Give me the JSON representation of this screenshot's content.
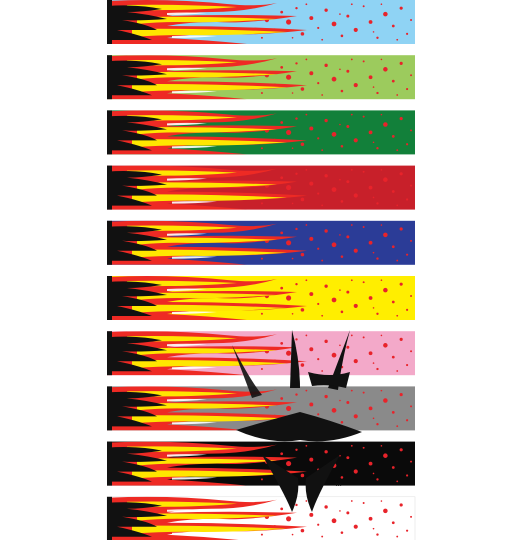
{
  "colors": {
    "flame_red": "#ee2a24",
    "flame_yellow": "#ffe600",
    "flame_black": "#111111",
    "splatter": "#e8232a",
    "logo": "#111111"
  },
  "wraps": [
    {
      "name": "sky-blue",
      "color": "#8fd3f4"
    },
    {
      "name": "lime-green",
      "color": "#9ccb5d"
    },
    {
      "name": "green",
      "color": "#12803a"
    },
    {
      "name": "red",
      "color": "#c8202a"
    },
    {
      "name": "blue",
      "color": "#2b3c97"
    },
    {
      "name": "yellow",
      "color": "#ffee00"
    },
    {
      "name": "pink",
      "color": "#f3a9c9"
    },
    {
      "name": "gray",
      "color": "#8a8a8a"
    },
    {
      "name": "black",
      "color": "#0a0a0a"
    },
    {
      "name": "white",
      "color": "#ffffff"
    }
  ],
  "watermark": {
    "icon": "tribal-logo-icon",
    "trademark": "™"
  }
}
